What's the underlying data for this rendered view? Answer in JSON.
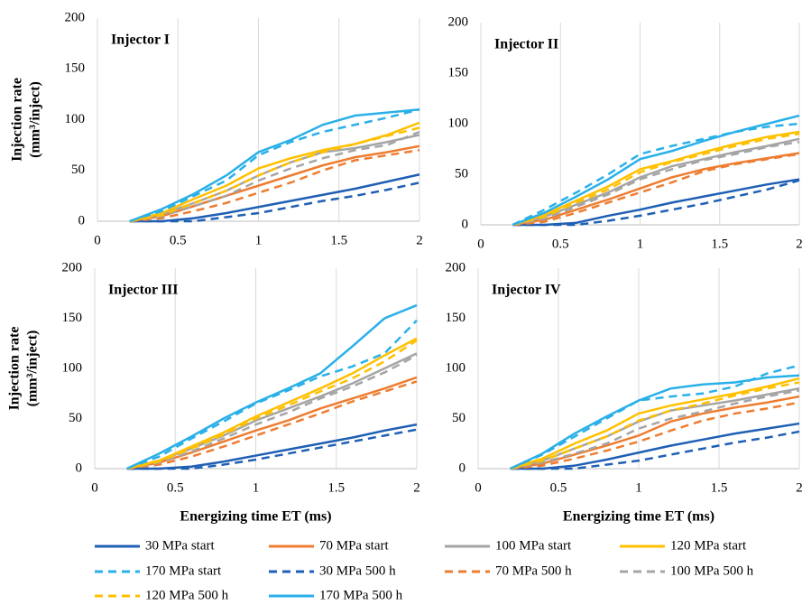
{
  "chart_data": [
    {
      "type": "line",
      "title": "Injector I",
      "y_label": [
        "Injection rate",
        "(mm³/inject)"
      ],
      "x": [
        0.2,
        0.4,
        0.6,
        0.8,
        1.0,
        1.2,
        1.4,
        1.6,
        1.8,
        2.0
      ],
      "xlim": [
        0,
        2
      ],
      "xticks": [
        0,
        0.5,
        1,
        1.5,
        2
      ],
      "ylim": [
        0,
        200
      ],
      "yticks": [
        0,
        50,
        100,
        150,
        200
      ],
      "grid": "x",
      "series": [
        {
          "name": "30 MPa start",
          "color": "#1f5fb4",
          "dash": false,
          "values": [
            0,
            0,
            3,
            8,
            14,
            20,
            26,
            32,
            39,
            46
          ]
        },
        {
          "name": "70 MPa start",
          "color": "#ed7d31",
          "dash": false,
          "values": [
            0,
            5,
            15,
            25,
            35,
            45,
            55,
            63,
            68,
            74
          ]
        },
        {
          "name": "100 MPa start",
          "color": "#a5a5a5",
          "dash": false,
          "values": [
            0,
            7,
            18,
            30,
            45,
            58,
            68,
            72,
            78,
            85
          ]
        },
        {
          "name": "120 MPa start",
          "color": "#ffc000",
          "dash": false,
          "values": [
            0,
            8,
            22,
            35,
            52,
            62,
            70,
            76,
            85,
            97
          ]
        },
        {
          "name": "170 MPa start",
          "color": "#2ab0e8",
          "dash": true,
          "values": [
            0,
            10,
            25,
            40,
            65,
            78,
            88,
            95,
            102,
            110
          ]
        },
        {
          "name": "30 MPa 500 h",
          "color": "#1f5fb4",
          "dash": true,
          "values": [
            0,
            0,
            0,
            4,
            8,
            14,
            20,
            25,
            31,
            38
          ]
        },
        {
          "name": "70 MPa 500 h",
          "color": "#ed7d31",
          "dash": true,
          "values": [
            0,
            3,
            10,
            18,
            28,
            38,
            50,
            60,
            65,
            70
          ]
        },
        {
          "name": "100 MPa 500 h",
          "color": "#a5a5a5",
          "dash": true,
          "values": [
            0,
            5,
            15,
            25,
            40,
            52,
            62,
            70,
            75,
            88
          ]
        },
        {
          "name": "120 MPa 500 h",
          "color": "#ffc000",
          "dash": true,
          "values": [
            0,
            6,
            18,
            30,
            45,
            58,
            68,
            76,
            84,
            92
          ]
        },
        {
          "name": "170 MPa 500 h",
          "color": "#2ab0e8",
          "dash": false,
          "values": [
            0,
            12,
            27,
            45,
            68,
            80,
            95,
            104,
            107,
            110
          ]
        }
      ]
    },
    {
      "type": "line",
      "title": "Injector II",
      "x": [
        0.2,
        0.4,
        0.6,
        0.8,
        1.0,
        1.2,
        1.4,
        1.6,
        1.8,
        2.0
      ],
      "xlim": [
        0,
        2
      ],
      "xticks": [
        0,
        0.5,
        1,
        1.5,
        2
      ],
      "ylim": [
        0,
        200
      ],
      "yticks": [
        0,
        50,
        100,
        150,
        200
      ],
      "grid": "x",
      "series": [
        {
          "name": "30 MPa start",
          "color": "#1f5fb4",
          "dash": false,
          "values": [
            0,
            0,
            2,
            9,
            15,
            22,
            28,
            34,
            40,
            45
          ]
        },
        {
          "name": "70 MPa start",
          "color": "#ed7d31",
          "dash": false,
          "values": [
            0,
            5,
            15,
            25,
            36,
            47,
            55,
            61,
            66,
            71
          ]
        },
        {
          "name": "100 MPa start",
          "color": "#a5a5a5",
          "dash": false,
          "values": [
            0,
            8,
            20,
            32,
            47,
            58,
            65,
            72,
            78,
            85
          ]
        },
        {
          "name": "120 MPa start",
          "color": "#ffc000",
          "dash": false,
          "values": [
            0,
            10,
            24,
            38,
            55,
            63,
            72,
            80,
            87,
            92
          ]
        },
        {
          "name": "170 MPa start",
          "color": "#2ab0e8",
          "dash": true,
          "values": [
            0,
            15,
            32,
            50,
            70,
            78,
            85,
            92,
            97,
            100
          ]
        },
        {
          "name": "30 MPa 500 h",
          "color": "#1f5fb4",
          "dash": true,
          "values": [
            0,
            0,
            0,
            4,
            9,
            15,
            21,
            28,
            35,
            44
          ]
        },
        {
          "name": "70 MPa 500 h",
          "color": "#ed7d31",
          "dash": true,
          "values": [
            0,
            3,
            12,
            22,
            32,
            42,
            53,
            60,
            65,
            70
          ]
        },
        {
          "name": "100 MPa 500 h",
          "color": "#a5a5a5",
          "dash": true,
          "values": [
            0,
            6,
            18,
            30,
            45,
            55,
            64,
            70,
            77,
            82
          ]
        },
        {
          "name": "120 MPa 500 h",
          "color": "#ffc000",
          "dash": true,
          "values": [
            0,
            8,
            22,
            35,
            52,
            62,
            70,
            78,
            85,
            90
          ]
        },
        {
          "name": "170 MPa 500 h",
          "color": "#2ab0e8",
          "dash": false,
          "values": [
            0,
            12,
            28,
            45,
            65,
            73,
            83,
            92,
            100,
            108
          ]
        }
      ]
    },
    {
      "type": "line",
      "title": "Injector III",
      "y_label": [
        "Injection rate",
        "(mm³/inject)"
      ],
      "x_label": "Energizing time ET (ms)",
      "x": [
        0.2,
        0.4,
        0.6,
        0.8,
        1.0,
        1.2,
        1.4,
        1.6,
        1.8,
        2.0
      ],
      "xlim": [
        0,
        2
      ],
      "xticks": [
        0,
        0.5,
        1,
        1.5,
        2
      ],
      "ylim": [
        0,
        200
      ],
      "yticks": [
        0,
        50,
        100,
        150,
        200
      ],
      "grid": "x",
      "series": [
        {
          "name": "30 MPa start",
          "color": "#1f5fb4",
          "dash": false,
          "values": [
            0,
            0,
            2,
            7,
            13,
            19,
            25,
            31,
            38,
            44
          ]
        },
        {
          "name": "70 MPa start",
          "color": "#ed7d31",
          "dash": false,
          "values": [
            0,
            6,
            16,
            27,
            38,
            48,
            60,
            70,
            80,
            91
          ]
        },
        {
          "name": "100 MPa start",
          "color": "#a5a5a5",
          "dash": false,
          "values": [
            0,
            8,
            20,
            33,
            48,
            60,
            72,
            85,
            100,
            115
          ]
        },
        {
          "name": "120 MPa start",
          "color": "#ffc000",
          "dash": false,
          "values": [
            0,
            8,
            22,
            36,
            52,
            66,
            80,
            95,
            113,
            130
          ]
        },
        {
          "name": "170 MPa start",
          "color": "#2ab0e8",
          "dash": true,
          "values": [
            0,
            12,
            30,
            47,
            65,
            78,
            92,
            102,
            115,
            148
          ]
        },
        {
          "name": "30 MPa 500 h",
          "color": "#1f5fb4",
          "dash": true,
          "values": [
            0,
            0,
            0,
            4,
            9,
            15,
            21,
            27,
            33,
            39
          ]
        },
        {
          "name": "70 MPa 500 h",
          "color": "#ed7d31",
          "dash": true,
          "values": [
            0,
            4,
            12,
            22,
            33,
            44,
            55,
            67,
            77,
            87
          ]
        },
        {
          "name": "100 MPa 500 h",
          "color": "#a5a5a5",
          "dash": true,
          "values": [
            0,
            6,
            17,
            30,
            44,
            56,
            70,
            82,
            96,
            113
          ]
        },
        {
          "name": "120 MPa 500 h",
          "color": "#ffc000",
          "dash": true,
          "values": [
            0,
            7,
            20,
            34,
            50,
            63,
            77,
            90,
            107,
            128
          ]
        },
        {
          "name": "170 MPa 500 h",
          "color": "#2ab0e8",
          "dash": false,
          "values": [
            0,
            15,
            32,
            50,
            66,
            80,
            95,
            122,
            150,
            163
          ]
        }
      ]
    },
    {
      "type": "line",
      "title": "Injector IV",
      "x_label": "Energizing time ET (ms)",
      "x": [
        0.2,
        0.4,
        0.6,
        0.8,
        1.0,
        1.2,
        1.4,
        1.6,
        1.8,
        2.0
      ],
      "xlim": [
        0,
        2
      ],
      "xticks": [
        0,
        0.5,
        1,
        1.5,
        2
      ],
      "ylim": [
        0,
        200
      ],
      "yticks": [
        0,
        50,
        100,
        150,
        200
      ],
      "grid": "x",
      "series": [
        {
          "name": "30 MPa start",
          "color": "#1f5fb4",
          "dash": false,
          "values": [
            0,
            0,
            3,
            9,
            16,
            23,
            29,
            35,
            40,
            45
          ]
        },
        {
          "name": "70 MPa start",
          "color": "#ed7d31",
          "dash": false,
          "values": [
            0,
            5,
            14,
            23,
            33,
            47,
            55,
            61,
            66,
            72
          ]
        },
        {
          "name": "100 MPa start",
          "color": "#a5a5a5",
          "dash": false,
          "values": [
            0,
            8,
            20,
            32,
            47,
            58,
            63,
            68,
            74,
            80
          ]
        },
        {
          "name": "120 MPa start",
          "color": "#ffc000",
          "dash": false,
          "values": [
            0,
            10,
            25,
            38,
            55,
            63,
            69,
            75,
            82,
            90
          ]
        },
        {
          "name": "170 MPa start",
          "color": "#2ab0e8",
          "dash": true,
          "values": [
            0,
            14,
            32,
            50,
            68,
            72,
            75,
            82,
            95,
            103
          ]
        },
        {
          "name": "30 MPa 500 h",
          "color": "#1f5fb4",
          "dash": true,
          "values": [
            0,
            0,
            0,
            4,
            8,
            14,
            20,
            26,
            31,
            37
          ]
        },
        {
          "name": "70 MPa 500 h",
          "color": "#ed7d31",
          "dash": true,
          "values": [
            0,
            3,
            10,
            18,
            27,
            38,
            48,
            55,
            60,
            66
          ]
        },
        {
          "name": "100 MPa 500 h",
          "color": "#a5a5a5",
          "dash": true,
          "values": [
            0,
            6,
            15,
            25,
            40,
            50,
            57,
            65,
            72,
            78
          ]
        },
        {
          "name": "120 MPa 500 h",
          "color": "#ffc000",
          "dash": true,
          "values": [
            0,
            8,
            20,
            32,
            48,
            58,
            65,
            73,
            80,
            86
          ]
        },
        {
          "name": "170 MPa 500 h",
          "color": "#2ab0e8",
          "dash": false,
          "values": [
            0,
            15,
            35,
            52,
            68,
            80,
            84,
            86,
            91,
            93
          ]
        }
      ]
    }
  ]
}
